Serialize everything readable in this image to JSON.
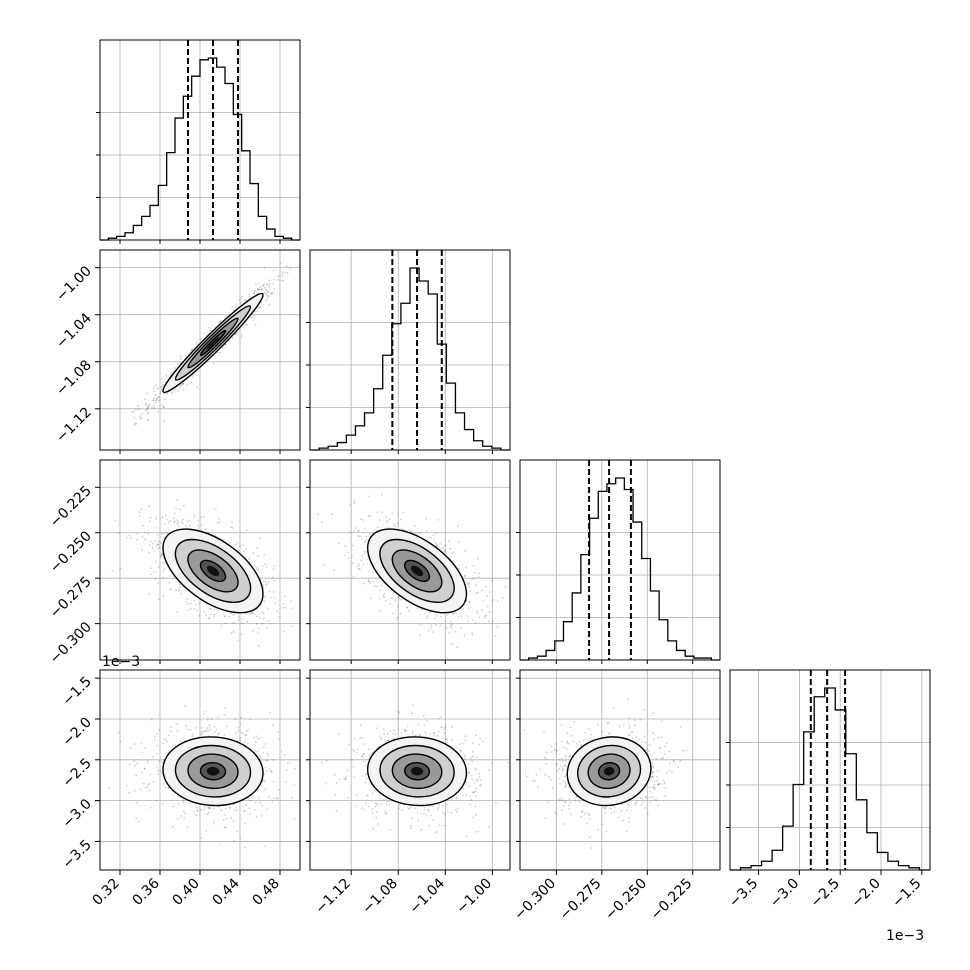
{
  "chart_data": {
    "type": "corner",
    "grid": true,
    "parameters": [
      {
        "range": [
          0.3,
          0.5
        ],
        "ticks": [
          0.32,
          0.36,
          0.4,
          0.44,
          0.48
        ],
        "tick_labels": [
          "0.32",
          "0.36",
          "0.40",
          "0.44",
          "0.48"
        ],
        "quantiles": [
          0.388,
          0.413,
          0.438
        ],
        "histogram": [
          0,
          1,
          2,
          4,
          8,
          13,
          19,
          30,
          48,
          67,
          79,
          90,
          99,
          100,
          95,
          86,
          69,
          49,
          31,
          13,
          6,
          2,
          1,
          0
        ]
      },
      {
        "range": [
          -1.155,
          -0.985
        ],
        "ticks": [
          -1.12,
          -1.08,
          -1.04,
          -1.0
        ],
        "tick_labels": [
          "−1.12",
          "−1.08",
          "−1.04",
          "−1.00"
        ],
        "quantiles": [
          -1.085,
          -1.064,
          -1.043
        ],
        "histogram": [
          0,
          1,
          2,
          4,
          8,
          13,
          20,
          33,
          51,
          68,
          79,
          98,
          91,
          84,
          57,
          36,
          20,
          11,
          5,
          2,
          1,
          0
        ]
      },
      {
        "range": [
          -0.32,
          -0.21
        ],
        "ticks": [
          -0.3,
          -0.275,
          -0.25,
          -0.225
        ],
        "tick_labels": [
          "−0.300",
          "−0.275",
          "−0.250",
          "−0.225"
        ],
        "quantiles": [
          -0.282,
          -0.271,
          -0.259
        ],
        "histogram": [
          0,
          1,
          2,
          5,
          10,
          20,
          35,
          55,
          74,
          88,
          92,
          95,
          89,
          72,
          53,
          36,
          21,
          10,
          5,
          2,
          1,
          1,
          0
        ]
      },
      {
        "range": [
          -3.85,
          -1.4
        ],
        "scale_label": "1e−3",
        "ticks": [
          -3.5,
          -3.0,
          -2.5,
          -2.0,
          -1.5
        ],
        "tick_labels": [
          "−3.5",
          "−3.0",
          "−2.5",
          "−2.0",
          "−1.5"
        ],
        "y_ticks": [
          -3.5,
          -3.0,
          -2.5,
          -2.0,
          -1.5
        ],
        "y_tick_labels": [
          "−3.5",
          "−3.0",
          "−2.5",
          "−2.0",
          "−1.5"
        ],
        "quantiles": [
          -2.86,
          -2.66,
          -2.44
        ],
        "histogram": [
          0,
          1,
          2,
          4,
          9,
          20,
          39,
          63,
          79,
          83,
          73,
          53,
          32,
          17,
          8,
          4,
          2,
          1,
          0
        ]
      }
    ],
    "pairs": [
      {
        "row": 1,
        "col": 0,
        "center": [
          0.413,
          -1.064
        ],
        "sigma": [
          0.025,
          0.021
        ],
        "rho": 0.97,
        "n_points": 900
      },
      {
        "row": 2,
        "col": 0,
        "center": [
          0.413,
          -0.271
        ],
        "sigma": [
          0.025,
          0.0115
        ],
        "rho": -0.55,
        "n_points": 900
      },
      {
        "row": 2,
        "col": 1,
        "center": [
          -1.064,
          -0.271
        ],
        "sigma": [
          0.021,
          0.0115
        ],
        "rho": -0.55,
        "n_points": 900
      },
      {
        "row": 3,
        "col": 0,
        "center": [
          0.413,
          -2.64
        ],
        "sigma": [
          0.025,
          0.21
        ],
        "rho": -0.05,
        "n_points": 900
      },
      {
        "row": 3,
        "col": 1,
        "center": [
          -1.064,
          -2.64
        ],
        "sigma": [
          0.021,
          0.21
        ],
        "rho": -0.05,
        "n_points": 900
      },
      {
        "row": 3,
        "col": 2,
        "center": [
          -0.271,
          -2.64
        ],
        "sigma": [
          0.0115,
          0.21
        ],
        "rho": 0.08,
        "n_points": 900
      }
    ],
    "contour_levels_sigma": [
      0.5,
      1.0,
      1.5,
      2.0
    ]
  }
}
